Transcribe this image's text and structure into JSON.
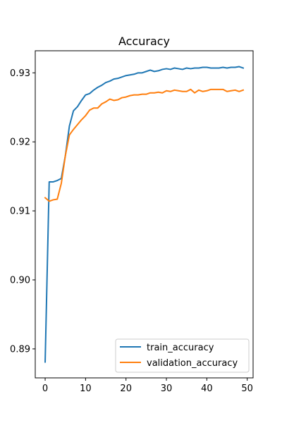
{
  "chart_data": {
    "type": "line",
    "title": "Accuracy",
    "xlabel": "",
    "ylabel": "",
    "xlim": [
      -2.45,
      51.45
    ],
    "ylim": [
      0.8858,
      0.9332
    ],
    "x_ticks": [
      0,
      10,
      20,
      30,
      40,
      50
    ],
    "y_ticks": [
      0.89,
      0.9,
      0.91,
      0.92,
      0.93
    ],
    "y_tick_labels": [
      "0.89",
      "0.90",
      "0.91",
      "0.92",
      "0.93"
    ],
    "grid": false,
    "legend_position": "lower-right",
    "series": [
      {
        "name": "train_accuracy",
        "color": "#1f77b4",
        "x": [
          0,
          1,
          2,
          3,
          4,
          5,
          6,
          7,
          8,
          9,
          10,
          11,
          12,
          13,
          14,
          15,
          16,
          17,
          18,
          19,
          20,
          21,
          22,
          23,
          24,
          25,
          26,
          27,
          28,
          29,
          30,
          31,
          32,
          33,
          34,
          35,
          36,
          37,
          38,
          39,
          40,
          41,
          42,
          43,
          44,
          45,
          46,
          47,
          48,
          49
        ],
        "values": [
          0.8881,
          0.9142,
          0.9142,
          0.9144,
          0.9147,
          0.918,
          0.9223,
          0.9245,
          0.9251,
          0.926,
          0.9268,
          0.927,
          0.9275,
          0.9279,
          0.9282,
          0.9286,
          0.9288,
          0.9291,
          0.9292,
          0.9294,
          0.9296,
          0.9297,
          0.9298,
          0.93,
          0.93,
          0.9302,
          0.9304,
          0.9302,
          0.9303,
          0.9305,
          0.9306,
          0.9305,
          0.9307,
          0.9306,
          0.9305,
          0.9307,
          0.9306,
          0.9307,
          0.9307,
          0.9308,
          0.9308,
          0.9307,
          0.9307,
          0.9307,
          0.9308,
          0.9307,
          0.9308,
          0.9308,
          0.9309,
          0.9307
        ]
      },
      {
        "name": "validation_accuracy",
        "color": "#ff7f0e",
        "x": [
          0,
          1,
          2,
          3,
          4,
          5,
          6,
          7,
          8,
          9,
          10,
          11,
          12,
          13,
          14,
          15,
          16,
          17,
          18,
          19,
          20,
          21,
          22,
          23,
          24,
          25,
          26,
          27,
          28,
          29,
          30,
          31,
          32,
          33,
          34,
          35,
          36,
          37,
          38,
          39,
          40,
          41,
          42,
          43,
          44,
          45,
          46,
          47,
          48,
          49
        ],
        "values": [
          0.9119,
          0.9114,
          0.9116,
          0.9117,
          0.914,
          0.918,
          0.921,
          0.9218,
          0.9225,
          0.9232,
          0.9238,
          0.9246,
          0.9249,
          0.9249,
          0.9255,
          0.9258,
          0.9262,
          0.926,
          0.9261,
          0.9264,
          0.9265,
          0.9267,
          0.9268,
          0.9268,
          0.9269,
          0.9269,
          0.9271,
          0.9271,
          0.9272,
          0.9271,
          0.9274,
          0.9273,
          0.9275,
          0.9274,
          0.9273,
          0.9273,
          0.9276,
          0.9271,
          0.9275,
          0.9273,
          0.9274,
          0.9276,
          0.9276,
          0.9276,
          0.9276,
          0.9273,
          0.9274,
          0.9275,
          0.9273,
          0.9275
        ]
      }
    ]
  }
}
